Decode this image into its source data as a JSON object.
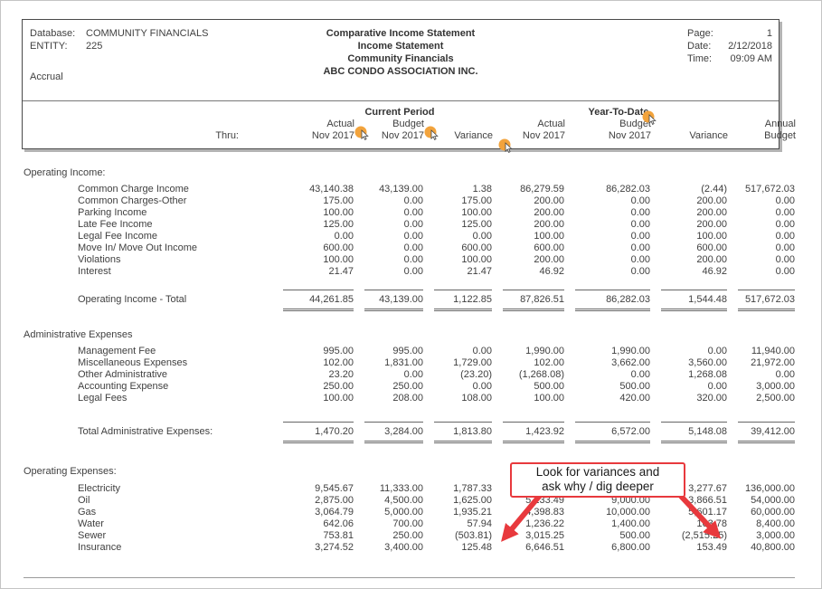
{
  "page": {
    "header": {
      "left": {
        "database_label": "Database:",
        "database_value": "COMMUNITY FINANCIALS",
        "entity_label": "ENTITY:",
        "entity_value": "225",
        "basis": "Accrual"
      },
      "center": {
        "lines": [
          "Comparative Income Statement",
          "Income Statement",
          "Community Financials",
          "ABC CONDO ASSOCIATION INC."
        ]
      },
      "right": {
        "rows": [
          {
            "label": "Page:",
            "value": "1"
          },
          {
            "label": "Date:",
            "value": "2/12/2018"
          },
          {
            "label": "Time:",
            "value": "09:09 AM"
          }
        ]
      }
    },
    "columns": {
      "thru_label": "Thru:",
      "group_current": "Current Period",
      "group_ytd": "Year-To-Date",
      "cols": [
        {
          "line1": "Actual",
          "line2": "Nov 2017"
        },
        {
          "line1": "Budget",
          "line2": "Nov 2017"
        },
        {
          "line1": "",
          "line2": "Variance"
        },
        {
          "line1": "Actual",
          "line2": "Nov 2017"
        },
        {
          "line1": "Budget",
          "line2": "Nov 2017"
        },
        {
          "line1": "",
          "line2": "Variance"
        },
        {
          "line1": "Annual",
          "line2": "Budget"
        }
      ]
    },
    "sections": [
      {
        "heading": "Operating Income:",
        "rows": [
          {
            "label": "Common Charge Income",
            "values": [
              "43,140.38",
              "43,139.00",
              "1.38",
              "86,279.59",
              "86,282.03",
              "(2.44)",
              "517,672.03"
            ]
          },
          {
            "label": "Common Charges-Other",
            "values": [
              "175.00",
              "0.00",
              "175.00",
              "200.00",
              "0.00",
              "200.00",
              "0.00"
            ]
          },
          {
            "label": "Parking Income",
            "values": [
              "100.00",
              "0.00",
              "100.00",
              "200.00",
              "0.00",
              "200.00",
              "0.00"
            ]
          },
          {
            "label": "Late Fee Income",
            "values": [
              "125.00",
              "0.00",
              "125.00",
              "200.00",
              "0.00",
              "200.00",
              "0.00"
            ]
          },
          {
            "label": "Legal Fee Income",
            "values": [
              "0.00",
              "0.00",
              "0.00",
              "100.00",
              "0.00",
              "100.00",
              "0.00"
            ]
          },
          {
            "label": "Move In/ Move Out Income",
            "values": [
              "600.00",
              "0.00",
              "600.00",
              "600.00",
              "0.00",
              "600.00",
              "0.00"
            ]
          },
          {
            "label": "Violations",
            "values": [
              "100.00",
              "0.00",
              "100.00",
              "200.00",
              "0.00",
              "200.00",
              "0.00"
            ]
          },
          {
            "label": "Interest",
            "values": [
              "21.47",
              "0.00",
              "21.47",
              "46.92",
              "0.00",
              "46.92",
              "0.00"
            ]
          }
        ],
        "total": {
          "label": "Operating Income - Total",
          "values": [
            "44,261.85",
            "43,139.00",
            "1,122.85",
            "87,826.51",
            "86,282.03",
            "1,544.48",
            "517,672.03"
          ]
        }
      },
      {
        "heading": "Administrative Expenses",
        "rows": [
          {
            "label": "Management Fee",
            "values": [
              "995.00",
              "995.00",
              "0.00",
              "1,990.00",
              "1,990.00",
              "0.00",
              "11,940.00"
            ]
          },
          {
            "label": "Miscellaneous Expenses",
            "values": [
              "102.00",
              "1,831.00",
              "1,729.00",
              "102.00",
              "3,662.00",
              "3,560.00",
              "21,972.00"
            ]
          },
          {
            "label": "Other Administrative",
            "values": [
              "23.20",
              "0.00",
              "(23.20)",
              "(1,268.08)",
              "0.00",
              "1,268.08",
              "0.00"
            ]
          },
          {
            "label": "Accounting Expense",
            "values": [
              "250.00",
              "250.00",
              "0.00",
              "500.00",
              "500.00",
              "0.00",
              "3,000.00"
            ]
          },
          {
            "label": "Legal Fees",
            "values": [
              "100.00",
              "208.00",
              "108.00",
              "100.00",
              "420.00",
              "320.00",
              "2,500.00"
            ]
          }
        ],
        "total": {
          "label": "Total Administrative Expenses:",
          "values": [
            "1,470.20",
            "3,284.00",
            "1,813.80",
            "1,423.92",
            "6,572.00",
            "5,148.08",
            "39,412.00"
          ]
        }
      },
      {
        "heading": "Operating Expenses:",
        "rows": [
          {
            "label": "Electricity",
            "values": [
              "9,545.67",
              "11,333.00",
              "1,787.33",
              "19,392.33",
              "22,670.00",
              "3,277.67",
              "136,000.00"
            ]
          },
          {
            "label": "Oil",
            "values": [
              "2,875.00",
              "4,500.00",
              "1,625.00",
              "5,133.49",
              "9,000.00",
              "3,866.51",
              "54,000.00"
            ]
          },
          {
            "label": "Gas",
            "values": [
              "3,064.79",
              "5,000.00",
              "1,935.21",
              "4,398.83",
              "10,000.00",
              "5,601.17",
              "60,000.00"
            ]
          },
          {
            "label": "Water",
            "values": [
              "642.06",
              "700.00",
              "57.94",
              "1,236.22",
              "1,400.00",
              "163.78",
              "8,400.00"
            ]
          },
          {
            "label": "Sewer",
            "values": [
              "753.81",
              "250.00",
              "(503.81)",
              "3,015.25",
              "500.00",
              "(2,515.25)",
              "3,000.00"
            ]
          },
          {
            "label": "Insurance",
            "values": [
              "3,274.52",
              "3,400.00",
              "125.48",
              "6,646.51",
              "6,800.00",
              "153.49",
              "40,800.00"
            ]
          }
        ],
        "total": null
      }
    ],
    "annotation": {
      "line1": "Look for variances and",
      "line2": "ask why / dig deeper"
    },
    "colors": {
      "accent_red": "#e8393d",
      "accent_orange": "#f2a33c"
    }
  }
}
